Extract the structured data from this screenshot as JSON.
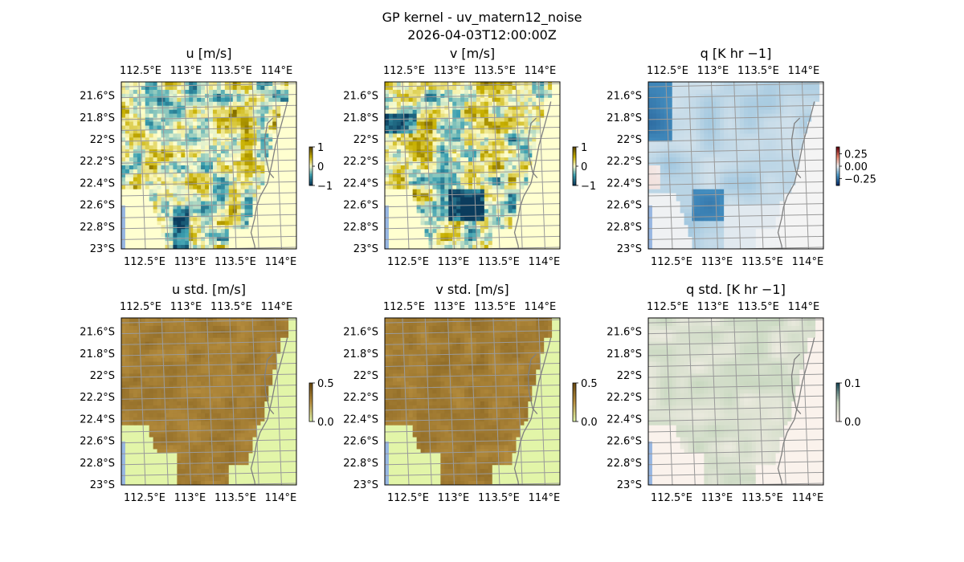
{
  "figure": {
    "title_line1": "GP kernel - uv_matern12_noise",
    "title_line2": "2026-04-03T12:00:00Z"
  },
  "chart_data": [
    {
      "type": "heatmap",
      "title": "u [m/s]",
      "xticks": [
        "112.5°E",
        "113°E",
        "113.5°E",
        "114°E"
      ],
      "yticks": [
        "21.6°S",
        "21.8°S",
        "22°S",
        "22.2°S",
        "22.4°S",
        "22.6°S",
        "22.8°S",
        "23°S"
      ],
      "colorbar_ticks": [
        "1",
        "0",
        "−1"
      ],
      "colormap": [
        "#0b3c5d",
        "#3a9fb0",
        "#ffffd0",
        "#c8b000",
        "#5f4a00"
      ],
      "clim": [
        -1.2,
        1.2
      ]
    },
    {
      "type": "heatmap",
      "title": "v [m/s]",
      "xticks": [
        "112.5°E",
        "113°E",
        "113.5°E",
        "114°E"
      ],
      "yticks": [
        "21.6°S",
        "21.8°S",
        "22°S",
        "22.2°S",
        "22.4°S",
        "22.6°S",
        "22.8°S",
        "23°S"
      ],
      "colorbar_ticks": [
        "1",
        "0",
        "−1"
      ],
      "colormap": [
        "#0b3c5d",
        "#3a9fb0",
        "#ffffd0",
        "#c8b000",
        "#5f4a00"
      ],
      "clim": [
        -1.2,
        1.2
      ]
    },
    {
      "type": "heatmap",
      "title": "q [K hr −1]",
      "xticks": [
        "112.5°E",
        "113°E",
        "113.5°E",
        "114°E"
      ],
      "yticks": [
        "21.6°S",
        "21.8°S",
        "22°S",
        "22.2°S",
        "22.4°S",
        "22.6°S",
        "22.8°S",
        "23°S"
      ],
      "colorbar_ticks": [
        "0.25",
        "0.00",
        "−0.25"
      ],
      "colormap": [
        "#08306b",
        "#4a98c9",
        "#f4f4f4",
        "#e8826a",
        "#67000d"
      ],
      "clim": [
        -0.35,
        0.35
      ]
    },
    {
      "type": "heatmap",
      "title": "u std. [m/s]",
      "xticks": [
        "112.5°E",
        "113°E",
        "113.5°E",
        "114°E"
      ],
      "yticks": [
        "21.6°S",
        "21.8°S",
        "22°S",
        "22.2°S",
        "22.4°S",
        "22.6°S",
        "22.8°S",
        "23°S"
      ],
      "colorbar_ticks": [
        "0.5",
        "0.0"
      ],
      "colormap": [
        "#e2f5a8",
        "#b99040",
        "#6a4a10"
      ],
      "clim": [
        0,
        0.6
      ]
    },
    {
      "type": "heatmap",
      "title": "v std. [m/s]",
      "xticks": [
        "112.5°E",
        "113°E",
        "113.5°E",
        "114°E"
      ],
      "yticks": [
        "21.6°S",
        "21.8°S",
        "22°S",
        "22.2°S",
        "22.4°S",
        "22.6°S",
        "22.8°S",
        "23°S"
      ],
      "colorbar_ticks": [
        "0.5",
        "0.0"
      ],
      "colormap": [
        "#e2f5a8",
        "#b99040",
        "#6a4a10"
      ],
      "clim": [
        0,
        0.6
      ]
    },
    {
      "type": "heatmap",
      "title": "q std. [K hr −1]",
      "xticks": [
        "112.5°E",
        "113°E",
        "113.5°E",
        "114°E"
      ],
      "yticks": [
        "21.6°S",
        "21.8°S",
        "22°S",
        "22.2°S",
        "22.4°S",
        "22.6°S",
        "22.8°S",
        "23°S"
      ],
      "colorbar_ticks": [
        "0.1",
        "0.0"
      ],
      "colormap": [
        "#fff4f0",
        "#c8d8c0",
        "#1a4a5a"
      ],
      "clim": [
        0,
        0.12
      ]
    }
  ]
}
